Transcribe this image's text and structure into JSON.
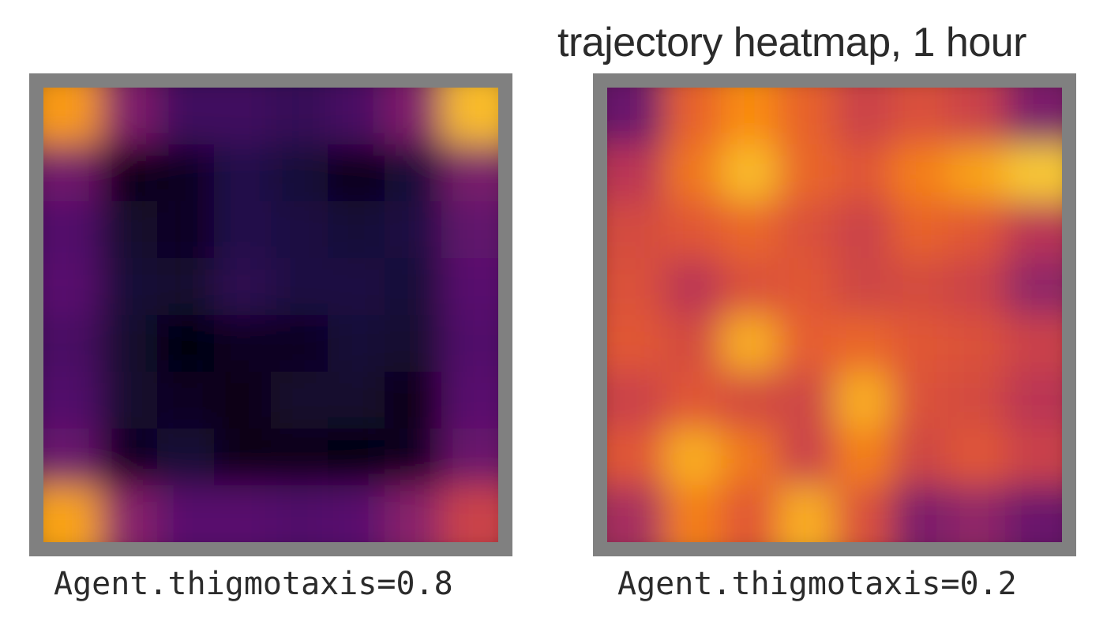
{
  "title": "trajectory heatmap, 1 hour",
  "colormap": "inferno",
  "colors": {
    "frame": "#808080",
    "text": "#2b2b2b"
  },
  "chart_data": [
    {
      "type": "heatmap",
      "label": "Agent.thigmotaxis=0.8",
      "grid_rows": 8,
      "grid_cols": 8,
      "values": [
        [
          0.78,
          0.36,
          0.2,
          0.2,
          0.18,
          0.22,
          0.36,
          0.85
        ],
        [
          0.32,
          0.04,
          0.06,
          0.14,
          0.1,
          0.04,
          0.1,
          0.34
        ],
        [
          0.24,
          0.08,
          0.06,
          0.14,
          0.12,
          0.1,
          0.12,
          0.28
        ],
        [
          0.26,
          0.1,
          0.08,
          0.16,
          0.12,
          0.12,
          0.1,
          0.26
        ],
        [
          0.22,
          0.08,
          0.02,
          0.06,
          0.06,
          0.1,
          0.08,
          0.24
        ],
        [
          0.24,
          0.08,
          0.06,
          0.04,
          0.08,
          0.08,
          0.04,
          0.26
        ],
        [
          0.3,
          0.06,
          0.1,
          0.04,
          0.04,
          0.02,
          0.06,
          0.3
        ],
        [
          0.8,
          0.38,
          0.26,
          0.26,
          0.24,
          0.26,
          0.38,
          0.55
        ]
      ]
    },
    {
      "type": "heatmap",
      "label": "Agent.thigmotaxis=0.2",
      "grid_rows": 8,
      "grid_cols": 8,
      "values": [
        [
          0.3,
          0.65,
          0.75,
          0.65,
          0.55,
          0.6,
          0.55,
          0.35
        ],
        [
          0.5,
          0.7,
          0.85,
          0.66,
          0.62,
          0.72,
          0.8,
          0.88
        ],
        [
          0.58,
          0.62,
          0.66,
          0.6,
          0.55,
          0.65,
          0.62,
          0.5
        ],
        [
          0.6,
          0.5,
          0.6,
          0.62,
          0.56,
          0.58,
          0.55,
          0.4
        ],
        [
          0.62,
          0.58,
          0.82,
          0.64,
          0.66,
          0.62,
          0.6,
          0.55
        ],
        [
          0.55,
          0.62,
          0.58,
          0.56,
          0.82,
          0.6,
          0.58,
          0.5
        ],
        [
          0.62,
          0.82,
          0.7,
          0.55,
          0.72,
          0.56,
          0.62,
          0.55
        ],
        [
          0.45,
          0.72,
          0.62,
          0.82,
          0.6,
          0.35,
          0.4,
          0.3
        ]
      ]
    }
  ]
}
